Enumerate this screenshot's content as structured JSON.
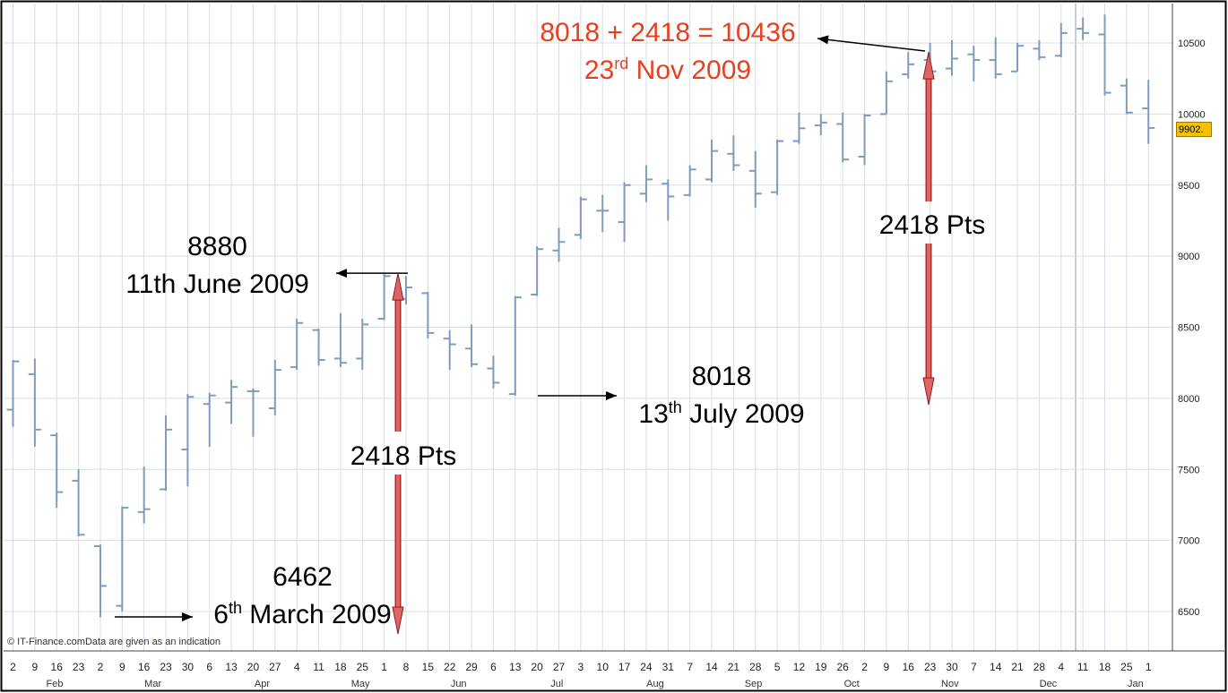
{
  "chart_data": {
    "type": "ohlc",
    "title": "",
    "xlabel": "",
    "ylabel": "",
    "ylim": [
      6250,
      10900
    ],
    "y_ticks": [
      6500,
      7000,
      7500,
      8000,
      8500,
      9000,
      9500,
      10000,
      10500
    ],
    "y_tick_labels": [
      "6500",
      "7000",
      "7500",
      "8000",
      "8500",
      "9000",
      "9500",
      "10000",
      "10500"
    ],
    "grid": true,
    "current_value_label": "9902.",
    "x_tick_labels": [
      "2",
      "9",
      "16",
      "23",
      "2",
      "9",
      "16",
      "23",
      "30",
      "6",
      "13",
      "20",
      "27",
      "4",
      "11",
      "18",
      "25",
      "1",
      "8",
      "15",
      "22",
      "29",
      "6",
      "13",
      "20",
      "27",
      "3",
      "10",
      "17",
      "24",
      "31",
      "7",
      "14",
      "21",
      "28",
      "5",
      "12",
      "19",
      "26",
      "2",
      "9",
      "16",
      "23",
      "30",
      "7",
      "14",
      "21",
      "28",
      "4",
      "11",
      "18",
      "25",
      "1"
    ],
    "months": [
      "Feb",
      "Mar",
      "Apr",
      "May",
      "Jun",
      "Jul",
      "Aug",
      "Sep",
      "Oct",
      "Nov",
      "Dec",
      "Jan"
    ],
    "month_tick_index": [
      1.5,
      6,
      11,
      15.5,
      20,
      24.5,
      29,
      33.5,
      38,
      42.5,
      47,
      51
    ],
    "bars": [
      {
        "high": 8270,
        "low": 7800,
        "open": 7920,
        "close": 8260
      },
      {
        "high": 8280,
        "low": 7660,
        "open": 8170,
        "close": 7780
      },
      {
        "high": 7760,
        "low": 7230,
        "open": 7740,
        "close": 7340
      },
      {
        "high": 7500,
        "low": 7030,
        "open": 7420,
        "close": 7040
      },
      {
        "high": 6970,
        "low": 6460,
        "open": 6960,
        "close": 6680
      },
      {
        "high": 7240,
        "low": 6500,
        "open": 6540,
        "close": 7230
      },
      {
        "high": 7520,
        "low": 7120,
        "open": 7200,
        "close": 7220
      },
      {
        "high": 7880,
        "low": 7350,
        "open": 7360,
        "close": 7780
      },
      {
        "high": 8030,
        "low": 7380,
        "open": 7640,
        "close": 8010
      },
      {
        "high": 8040,
        "low": 7660,
        "open": 7960,
        "close": 8020
      },
      {
        "high": 8130,
        "low": 7820,
        "open": 7970,
        "close": 8080
      },
      {
        "high": 8070,
        "low": 7730,
        "open": 8050,
        "close": 8050
      },
      {
        "high": 8270,
        "low": 7880,
        "open": 7930,
        "close": 8200
      },
      {
        "high": 8560,
        "low": 8200,
        "open": 8220,
        "close": 8530
      },
      {
        "high": 8490,
        "low": 8230,
        "open": 8480,
        "close": 8270
      },
      {
        "high": 8600,
        "low": 8220,
        "open": 8280,
        "close": 8250
      },
      {
        "high": 8560,
        "low": 8200,
        "open": 8280,
        "close": 8520
      },
      {
        "high": 8880,
        "low": 8550,
        "open": 8560,
        "close": 8860
      },
      {
        "high": 8860,
        "low": 8660,
        "open": 8700,
        "close": 8780
      },
      {
        "high": 8750,
        "low": 8420,
        "open": 8740,
        "close": 8460
      },
      {
        "high": 8480,
        "low": 8200,
        "open": 8420,
        "close": 8380
      },
      {
        "high": 8520,
        "low": 8220,
        "open": 8350,
        "close": 8240
      },
      {
        "high": 8300,
        "low": 8070,
        "open": 8210,
        "close": 8110
      },
      {
        "high": 8720,
        "low": 8018,
        "open": 8030,
        "close": 8710
      },
      {
        "high": 9070,
        "low": 8720,
        "open": 8730,
        "close": 9050
      },
      {
        "high": 9200,
        "low": 8960,
        "open": 9040,
        "close": 9100
      },
      {
        "high": 9420,
        "low": 9120,
        "open": 9150,
        "close": 9400
      },
      {
        "high": 9430,
        "low": 9170,
        "open": 9320,
        "close": 9320
      },
      {
        "high": 9520,
        "low": 9100,
        "open": 9240,
        "close": 9500
      },
      {
        "high": 9640,
        "low": 9380,
        "open": 9440,
        "close": 9540
      },
      {
        "high": 9540,
        "low": 9250,
        "open": 9510,
        "close": 9420
      },
      {
        "high": 9640,
        "low": 9420,
        "open": 9430,
        "close": 9610
      },
      {
        "high": 9820,
        "low": 9520,
        "open": 9540,
        "close": 9740
      },
      {
        "high": 9850,
        "low": 9600,
        "open": 9720,
        "close": 9640
      },
      {
        "high": 9740,
        "low": 9340,
        "open": 9600,
        "close": 9440
      },
      {
        "high": 9820,
        "low": 9430,
        "open": 9450,
        "close": 9810
      },
      {
        "high": 10010,
        "low": 9790,
        "open": 9810,
        "close": 9900
      },
      {
        "high": 10000,
        "low": 9850,
        "open": 9920,
        "close": 9940
      },
      {
        "high": 10010,
        "low": 9660,
        "open": 9930,
        "close": 9680
      },
      {
        "high": 10000,
        "low": 9640,
        "open": 9700,
        "close": 9990
      },
      {
        "high": 10300,
        "low": 10000,
        "open": 10000,
        "close": 10230
      },
      {
        "high": 10436,
        "low": 10250,
        "open": 10280,
        "close": 10350
      },
      {
        "high": 10500,
        "low": 10120,
        "open": 10380,
        "close": 10300
      },
      {
        "high": 10520,
        "low": 10270,
        "open": 10320,
        "close": 10390
      },
      {
        "high": 10480,
        "low": 10230,
        "open": 10420,
        "close": 10380
      },
      {
        "high": 10540,
        "low": 10250,
        "open": 10380,
        "close": 10280
      },
      {
        "high": 10500,
        "low": 10300,
        "open": 10300,
        "close": 10480
      },
      {
        "high": 10520,
        "low": 10380,
        "open": 10460,
        "close": 10400
      },
      {
        "high": 10640,
        "low": 10400,
        "open": 10410,
        "close": 10570
      },
      {
        "high": 10680,
        "low": 10520,
        "open": 10600,
        "close": 10570
      },
      {
        "high": 10700,
        "low": 10130,
        "open": 10560,
        "close": 10150
      },
      {
        "high": 10250,
        "low": 10000,
        "open": 10200,
        "close": 10010
      },
      {
        "high": 10240,
        "low": 9790,
        "open": 10040,
        "close": 9902
      }
    ],
    "annotations": {
      "low": {
        "value": "6462",
        "date_prefix": "6",
        "date_sup": "th",
        "date_suffix": " March 2009"
      },
      "high": {
        "value": "8880",
        "date": "11th June 2009"
      },
      "low2": {
        "value": "8018",
        "date_prefix": "13",
        "date_sup": "th",
        "date_suffix": " July 2009"
      },
      "target": {
        "equation": "8018 + 2418 = 10436",
        "date_prefix": "23",
        "date_sup": "rd",
        "date_suffix": " Nov 2009"
      },
      "pts1": "2418 Pts",
      "pts2": "2418 Pts"
    },
    "colors": {
      "bars": "#7f9bbd",
      "grid": "#d9dde3",
      "arrow": "#e06466",
      "annotation_red": "#e8401f",
      "price_label_bg": "#f5c200"
    }
  },
  "footer_note": "© IT-Finance.comData are given as an indication"
}
